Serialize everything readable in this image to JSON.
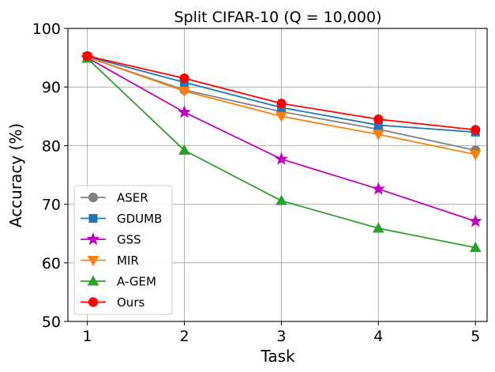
{
  "chart_data": {
    "type": "line",
    "title": "Split CIFAR-10 (Q = 10,000)",
    "xlabel": "Task",
    "ylabel": "Accuracy (%)",
    "x": [
      1,
      2,
      3,
      4,
      5
    ],
    "xlim": [
      0.8,
      5.12
    ],
    "ylim": [
      50,
      100
    ],
    "xticks": [
      1,
      2,
      3,
      4,
      5
    ],
    "yticks": [
      50,
      60,
      70,
      80,
      90,
      100
    ],
    "grid": true,
    "legend_position": "lower-left",
    "series": [
      {
        "name": "ASER",
        "color": "#808080",
        "marker": "circle",
        "values": [
          95.1,
          89.5,
          85.8,
          82.8,
          79.2
        ]
      },
      {
        "name": "GDUMB",
        "color": "#1f77b4",
        "marker": "square",
        "values": [
          95.2,
          90.8,
          86.5,
          83.5,
          82.3
        ]
      },
      {
        "name": "GSS",
        "color": "#c000c0",
        "marker": "star",
        "values": [
          95.0,
          85.7,
          77.7,
          72.6,
          67.1
        ]
      },
      {
        "name": "MIR",
        "color": "#ff7f0e",
        "marker": "triangle-down",
        "values": [
          95.1,
          89.3,
          85.0,
          81.9,
          78.5
        ]
      },
      {
        "name": "A-GEM",
        "color": "#2ca02c",
        "marker": "triangle-up",
        "values": [
          94.9,
          79.2,
          70.6,
          65.9,
          62.6
        ]
      },
      {
        "name": "Ours",
        "color": "#ff0000",
        "marker": "circle",
        "values": [
          95.3,
          91.5,
          87.2,
          84.5,
          82.7
        ]
      }
    ]
  }
}
